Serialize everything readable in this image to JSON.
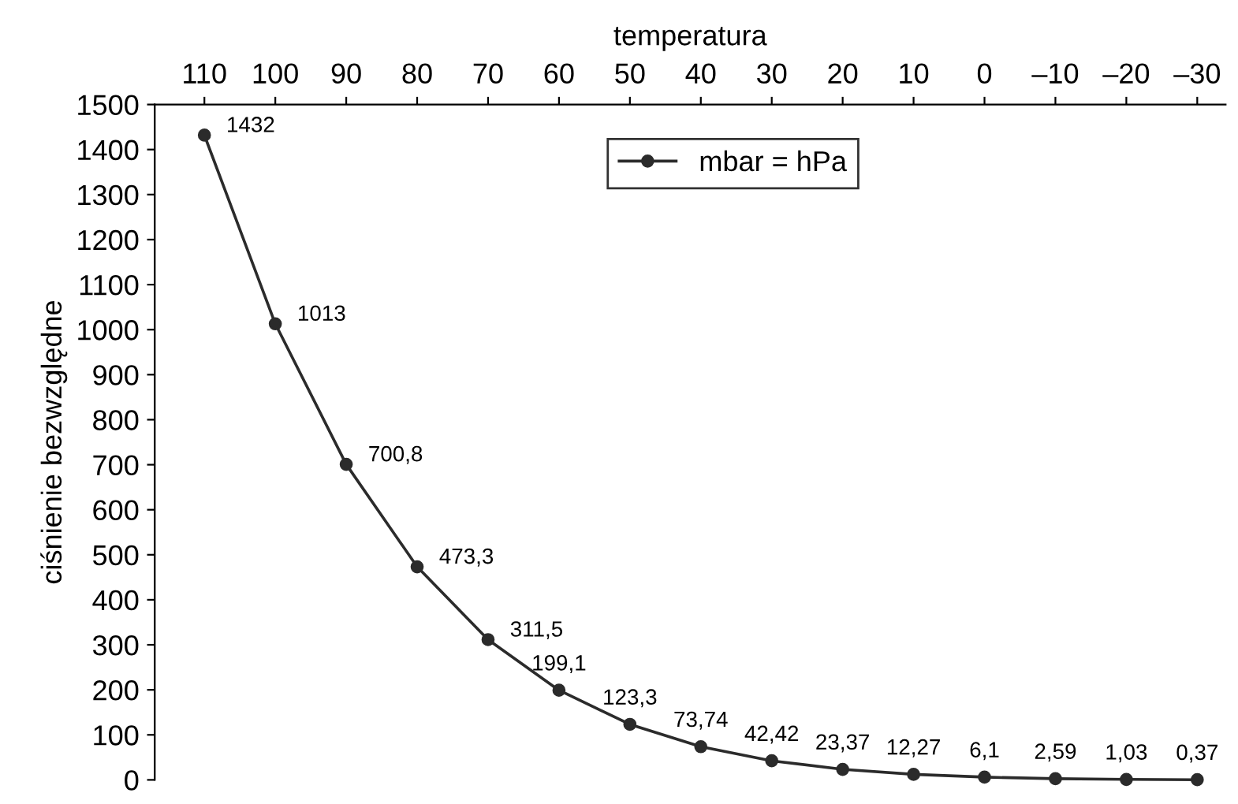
{
  "chart_data": {
    "type": "line",
    "xlabel": "temperatura",
    "ylabel": "ciśnienie bezwzględne",
    "x": [
      110,
      100,
      90,
      80,
      70,
      60,
      50,
      40,
      30,
      20,
      10,
      0,
      -10,
      -20,
      -30
    ],
    "series": [
      {
        "name": "mbar = hPa",
        "color": "#2b2b2b",
        "values": [
          1432,
          1013,
          700.8,
          473.3,
          311.5,
          199.1,
          123.3,
          73.74,
          42.42,
          23.37,
          12.27,
          6.1,
          2.59,
          1.03,
          0.37
        ],
        "value_labels": [
          "1432",
          "1013",
          "700,8",
          "473,3",
          "311,5",
          "199,1",
          "123,3",
          "73,74",
          "42,42",
          "23,37",
          "12,27",
          "6,1",
          "2,59",
          "1,03",
          "0,37"
        ]
      }
    ],
    "xlim": [
      117,
      -34
    ],
    "ylim": [
      0,
      1500
    ],
    "xticks": [
      110,
      100,
      90,
      80,
      70,
      60,
      50,
      40,
      30,
      20,
      10,
      0,
      {
        "value": -10,
        "label": "–10"
      },
      {
        "value": -20,
        "label": "–20"
      },
      {
        "value": -30,
        "label": "–30"
      }
    ],
    "yticks": [
      0,
      100,
      200,
      300,
      400,
      500,
      600,
      700,
      800,
      900,
      1000,
      1100,
      1200,
      1300,
      1400,
      1500
    ],
    "marker": "circle",
    "line_style": "solid",
    "legend": "top",
    "grid": false
  }
}
